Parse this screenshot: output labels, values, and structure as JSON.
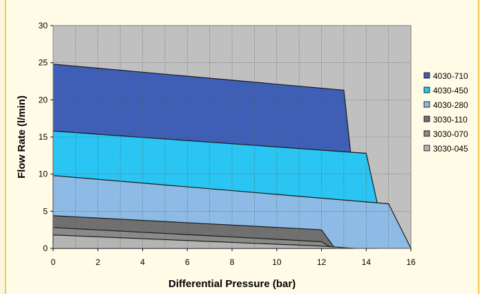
{
  "chart_data": {
    "type": "area",
    "xlabel": "Differential Pressure (bar)",
    "ylabel": "Flow Rate (l/min)",
    "xlim": [
      0,
      16
    ],
    "ylim": [
      0,
      30
    ],
    "xticks": [
      0,
      2,
      4,
      6,
      8,
      10,
      12,
      14,
      16
    ],
    "yticks": [
      0,
      5,
      10,
      15,
      20,
      25,
      30
    ],
    "grid": true,
    "legend_position": "right",
    "plot_background": "#c0c0c0",
    "series": [
      {
        "name": "4030-710",
        "color": "#3f5fb7",
        "x": [
          0,
          13,
          13.3
        ],
        "y": [
          24.8,
          21.3,
          13
        ]
      },
      {
        "name": "4030-450",
        "color": "#2ac5f2",
        "x": [
          0,
          14,
          14.5
        ],
        "y": [
          15.8,
          12.8,
          6
        ]
      },
      {
        "name": "4030-280",
        "color": "#8ebbe6",
        "x": [
          0,
          15,
          16
        ],
        "y": [
          9.8,
          6,
          0
        ]
      },
      {
        "name": "3030-110",
        "color": "#707070",
        "x": [
          0,
          12,
          12.6
        ],
        "y": [
          4.4,
          2.5,
          0
        ]
      },
      {
        "name": "3030-070",
        "color": "#8a8a8a",
        "x": [
          0,
          12,
          12.5
        ],
        "y": [
          2.8,
          0.9,
          0
        ]
      },
      {
        "name": "3030-045",
        "color": "#b4b4b4",
        "x": [
          0,
          12,
          13.5
        ],
        "y": [
          1.8,
          0.3,
          0
        ]
      }
    ]
  }
}
